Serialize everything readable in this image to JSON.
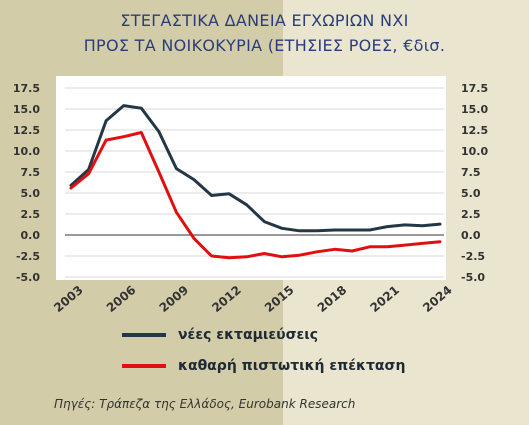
{
  "title_line1": "ΣΤΕΓΑΣΤΙΚΑ ΔΑΝΕΙΑ ΕΓΧΩΡΙΩΝ ΝΧΙ",
  "title_line2": "ΠΡΟΣ ΤΑ ΝΟΙΚΟΚΥΡΙΑ (ΕΤΗΣΙΕΣ ΡΟΕΣ, €δισ.",
  "source": "Πηγές: Τράπεζα της Ελλάδος, Eurobank Research",
  "chart_data": {
    "type": "line",
    "title": "ΣΤΕΓΑΣΤΙΚΑ ΔΑΝΕΙΑ ΕΓΧΩΡΙΩΝ ΝΧΙ ΠΡΟΣ ΤΑ ΝΟΙΚΟΚΥΡΙΑ (ΕΤΗΣΙΕΣ ΡΟΕΣ, €δισ.",
    "xlabel": "",
    "ylabel": "",
    "xlim": [
      2003,
      2024
    ],
    "ylim": [
      -5.0,
      17.5
    ],
    "x_ticks": [
      "2003",
      "2006",
      "2009",
      "2012",
      "2015",
      "2018",
      "2021",
      "2024"
    ],
    "y_ticks": [
      "17.5",
      "15.0",
      "12.5",
      "10.0",
      "7.5",
      "5.0",
      "2.5",
      "0.0",
      "-2.5",
      "-5.0"
    ],
    "grid": "horizontal",
    "legend": "bottom",
    "x": [
      2003,
      2004,
      2005,
      2006,
      2007,
      2008,
      2009,
      2010,
      2011,
      2012,
      2013,
      2014,
      2015,
      2016,
      2017,
      2018,
      2019,
      2020,
      2021,
      2022,
      2023,
      2024
    ],
    "series": [
      {
        "name": "νέες εκταμιεύσεις",
        "color": "#243746",
        "values": [
          5.9,
          7.8,
          13.6,
          15.4,
          15.1,
          12.3,
          7.9,
          6.6,
          4.7,
          4.9,
          3.6,
          1.6,
          0.8,
          0.5,
          0.5,
          0.6,
          0.6,
          0.6,
          1.0,
          1.2,
          1.1,
          1.3
        ]
      },
      {
        "name": "καθαρή πιστωτική επέκταση",
        "color": "#e01010",
        "values": [
          5.6,
          7.3,
          11.3,
          11.7,
          12.2,
          7.5,
          2.7,
          -0.4,
          -2.5,
          -2.7,
          -2.6,
          -2.2,
          -2.6,
          -2.4,
          -2.0,
          -1.7,
          -1.9,
          -1.4,
          -1.4,
          -1.2,
          -1.0,
          -0.8
        ]
      }
    ]
  }
}
